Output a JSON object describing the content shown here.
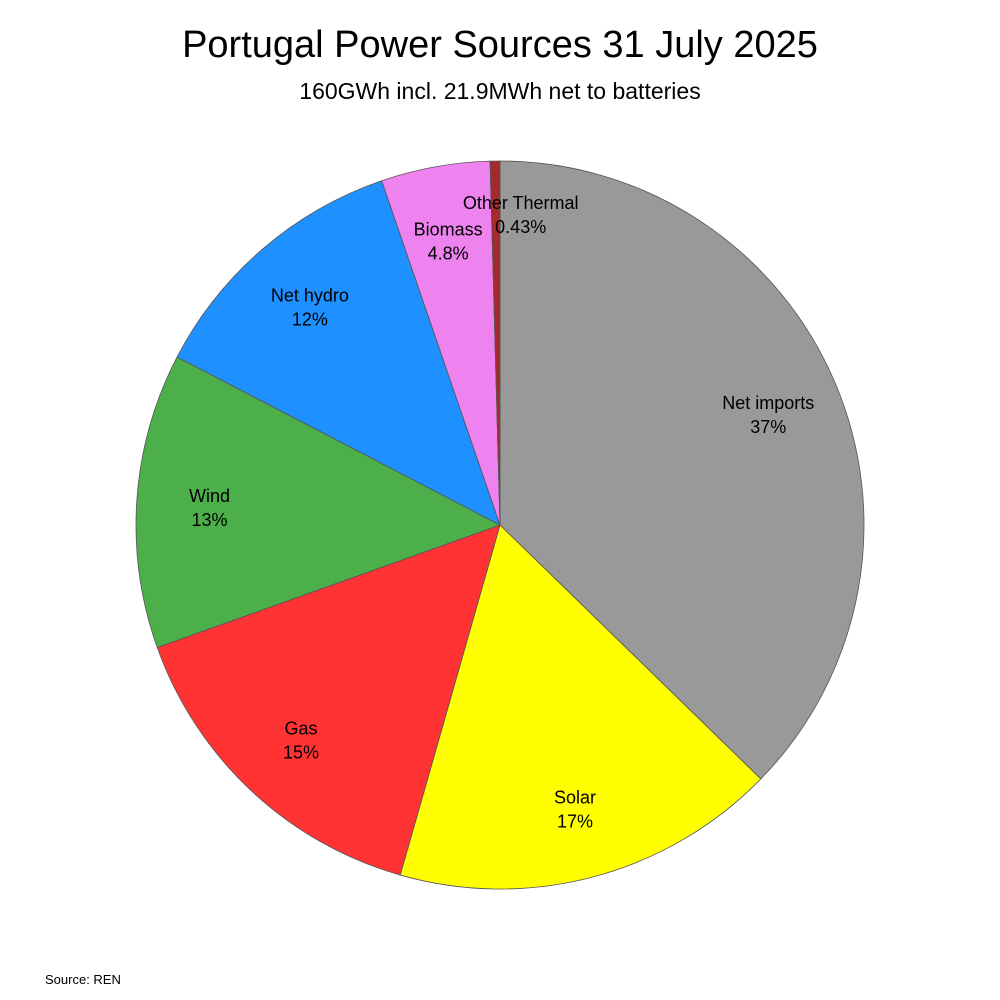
{
  "chart_data": {
    "type": "pie",
    "title": "Portugal Power Sources 31 July 2025",
    "subtitle": "160GWh incl. 21.9MWh net to batteries",
    "source": "Source: REN",
    "start": "12 o'clock",
    "direction": "clockwise",
    "slices": [
      {
        "label": "Net imports",
        "value": 37,
        "display": "37%",
        "color": "#999999"
      },
      {
        "label": "Solar",
        "value": 17,
        "display": "17%",
        "color": "#ffff00"
      },
      {
        "label": "Gas",
        "value": 15,
        "display": "15%",
        "color": "#ff3333"
      },
      {
        "label": "Wind",
        "value": 13,
        "display": "13%",
        "color": "#4daf4a"
      },
      {
        "label": "Net hydro",
        "value": 12,
        "display": "12%",
        "color": "#1e90ff"
      },
      {
        "label": "Biomass",
        "value": 4.8,
        "display": "4.8%",
        "color": "#ee82ee"
      },
      {
        "label": "Other Thermal",
        "value": 0.43,
        "display": "0.43%",
        "color": "#a52a2a"
      }
    ]
  }
}
